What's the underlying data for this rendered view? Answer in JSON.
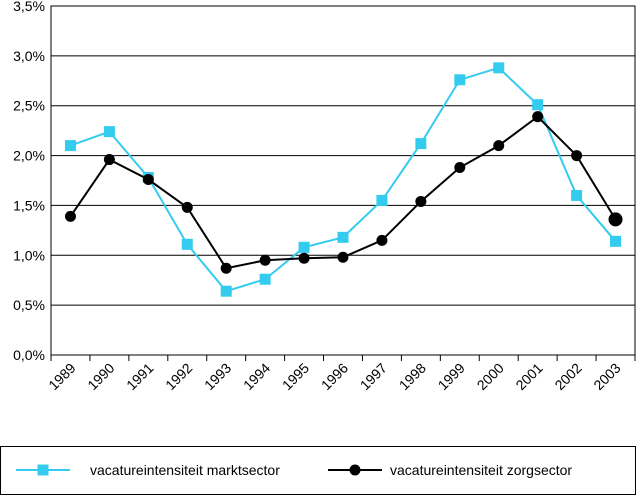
{
  "chart_data": {
    "type": "line",
    "title": "",
    "xlabel": "",
    "ylabel": "",
    "categories": [
      "1989",
      "1990",
      "1991",
      "1992",
      "1993",
      "1994",
      "1995",
      "1996",
      "1997",
      "1998",
      "1999",
      "2000",
      "2001",
      "2002",
      "2003"
    ],
    "ylim": [
      0,
      3.5
    ],
    "y_ticks": [
      {
        "value": 0.0,
        "label": "0,0%"
      },
      {
        "value": 0.5,
        "label": "0,5%"
      },
      {
        "value": 1.0,
        "label": "1,0%"
      },
      {
        "value": 1.5,
        "label": "1,5%"
      },
      {
        "value": 2.0,
        "label": "2,0%"
      },
      {
        "value": 2.5,
        "label": "2,5%"
      },
      {
        "value": 3.0,
        "label": "3,0%"
      },
      {
        "value": 3.5,
        "label": "3,5%"
      }
    ],
    "grid": "horizontal",
    "legend_position": "bottom",
    "series": [
      {
        "name": "vacatureintensiteit marktsector",
        "color": "#33ccee",
        "marker": "square",
        "values": [
          2.1,
          2.24,
          1.78,
          1.11,
          0.64,
          0.76,
          1.08,
          1.18,
          1.55,
          2.12,
          2.76,
          2.88,
          2.51,
          1.6,
          1.14
        ]
      },
      {
        "name": "vacatureintensiteit zorgsector",
        "color": "#000000",
        "marker": "circle",
        "values": [
          1.39,
          1.96,
          1.76,
          1.48,
          0.87,
          0.95,
          0.97,
          0.98,
          1.15,
          1.54,
          1.88,
          2.1,
          2.39,
          2.0,
          1.36
        ]
      }
    ]
  }
}
